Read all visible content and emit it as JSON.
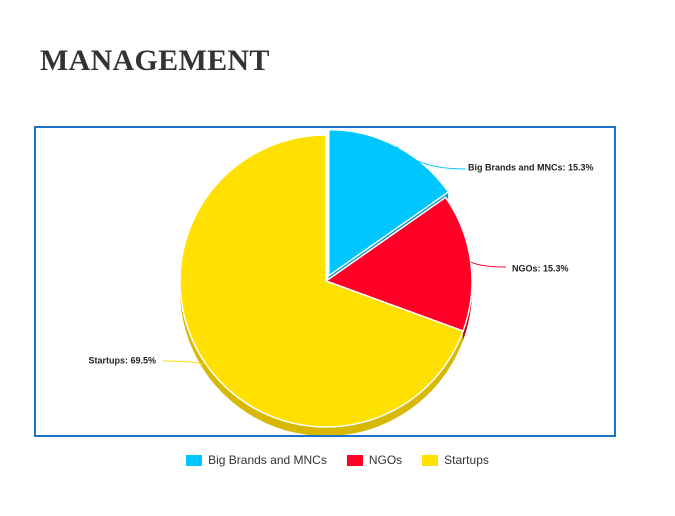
{
  "page": {
    "title": "MANAGEMENT"
  },
  "chart_data": {
    "type": "pie",
    "title": "",
    "slices": [
      {
        "name": "Big Brands and MNCs",
        "value": 15.3,
        "label": "Big Brands and MNCs: 15.3%",
        "color": "#00c6ff",
        "side_color": "#0097c8",
        "exploded": true
      },
      {
        "name": "NGOs",
        "value": 15.3,
        "label": "NGOs: 15.3%",
        "color": "#ff0027",
        "side_color": "#b5001c",
        "exploded": false
      },
      {
        "name": "Startups",
        "value": 69.5,
        "label": "Startups: 69.5%",
        "color": "#ffe000",
        "side_color": "#d8b800",
        "exploded": false
      }
    ],
    "legend": {
      "position": "bottom",
      "items": [
        "Big Brands and MNCs",
        "NGOs",
        "Startups"
      ]
    },
    "style": "3d"
  }
}
